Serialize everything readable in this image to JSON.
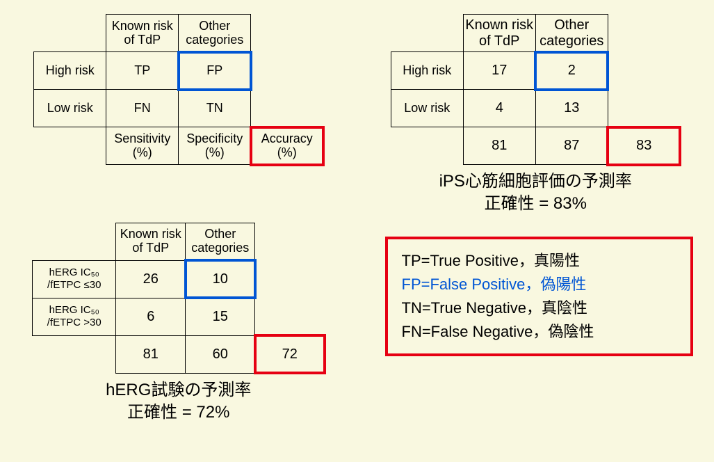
{
  "colors": {
    "background": "#f9f8e0",
    "border": "#000000",
    "highlight_blue": "#0055d4",
    "highlight_red": "#e60012",
    "text": "#000000"
  },
  "tableA": {
    "col1": "Known risk of TdP",
    "col2": "Other categories",
    "row1": "High risk",
    "row2": "Low risk",
    "c11": "TP",
    "c12": "FP",
    "c21": "FN",
    "c22": "TN",
    "m1": "Sensitivity (%)",
    "m2": "Specificity (%)",
    "m3": "Accuracy (%)"
  },
  "tableB": {
    "col1": "Known risk of TdP",
    "col2": "Other categories",
    "row1": "hERG IC₅₀ /fETPC ≤30",
    "row2": "hERG IC₅₀ /fETPC >30",
    "c11": "26",
    "c12": "10",
    "c21": "6",
    "c22": "15",
    "m1": "81",
    "m2": "60",
    "m3": "72",
    "caption1": "hERG試験の予測率",
    "caption2": "正確性 = 72%"
  },
  "tableC": {
    "col1": "Known risk of TdP",
    "col2": "Other categories",
    "row1": "High risk",
    "row2": "Low risk",
    "c11": "17",
    "c12": "2",
    "c21": "4",
    "c22": "13",
    "m1": "81",
    "m2": "87",
    "m3": "83",
    "caption1": "iPS心筋細胞評価の予測率",
    "caption2": "正確性 = 83%"
  },
  "legend": {
    "tp": "TP=True Positive，真陽性",
    "fp": "FP=False Positive，偽陽性",
    "tn": "TN=True Negative，真陰性",
    "fn": "FN=False Negative，偽陰性"
  }
}
